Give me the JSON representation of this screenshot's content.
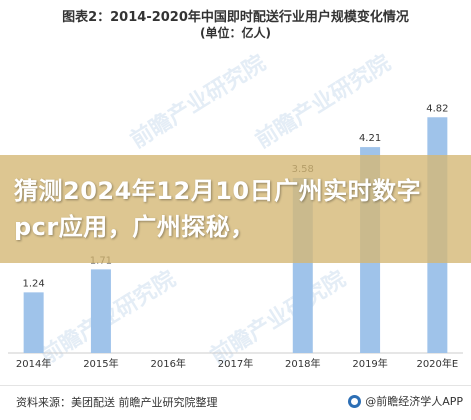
{
  "chart_data": {
    "type": "bar",
    "title": "图表2：2014-2020年中国即时配送行业用户规模变化情况",
    "subtitle": "(单位：亿人)",
    "categories": [
      "2014年",
      "2015年",
      "2016年",
      "2017年",
      "2018年",
      "2019年",
      "2020年E"
    ],
    "values": [
      1.24,
      1.71,
      null,
      null,
      3.58,
      4.21,
      4.82
    ],
    "value_labels": [
      "1.24",
      "1.71",
      "",
      "",
      "3.58",
      "4.21",
      "4.82"
    ],
    "ylim": [
      0,
      5.5
    ],
    "grid": false,
    "bar_color": "#9fc3ea"
  },
  "banner": {
    "text": "猜测2024年12月10日广州实时数字pcr应用，广州探秘，"
  },
  "footer": {
    "source": "资料来源：美团配送 前瞻产业研究院整理",
    "brand": "@前瞻经济学人APP"
  },
  "watermark": {
    "text": "前瞻产业研究院"
  }
}
